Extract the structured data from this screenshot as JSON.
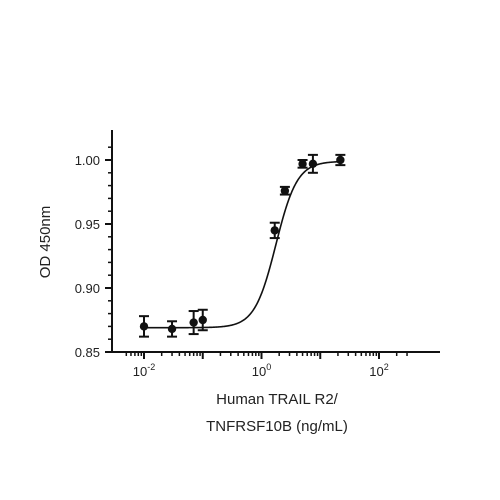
{
  "chart_data": {
    "type": "scatter",
    "xscale": "log",
    "xlabel": [
      "Human TRAIL R2/",
      "TNFRSF10B (ng/mL)"
    ],
    "ylabel": "OD 450nm",
    "xlim": [
      0.005,
      300
    ],
    "ylim": [
      0.85,
      1.02
    ],
    "grid": false,
    "legend": "none",
    "yticks": [
      {
        "value": 0.85,
        "label": "0.85"
      },
      {
        "value": 0.9,
        "label": "0.90"
      },
      {
        "value": 0.95,
        "label": "0.95"
      },
      {
        "value": 1.0,
        "label": "1.00"
      }
    ],
    "xticks": [
      {
        "value": 0.01,
        "base": "10",
        "exp": "-2"
      },
      {
        "value": 1,
        "base": "10",
        "exp": "0"
      },
      {
        "value": 100,
        "base": "10",
        "exp": "2"
      }
    ],
    "points": [
      {
        "x": 0.01,
        "y": 0.87,
        "err": 0.008
      },
      {
        "x": 0.03,
        "y": 0.868,
        "err": 0.006
      },
      {
        "x": 0.07,
        "y": 0.873,
        "err": 0.009
      },
      {
        "x": 0.1,
        "y": 0.875,
        "err": 0.008
      },
      {
        "x": 1.68,
        "y": 0.945,
        "err": 0.006
      },
      {
        "x": 2.5,
        "y": 0.976,
        "err": 0.003
      },
      {
        "x": 5.0,
        "y": 0.997,
        "err": 0.003
      },
      {
        "x": 7.5,
        "y": 0.997,
        "err": 0.007
      },
      {
        "x": 22.0,
        "y": 1.0,
        "err": 0.004
      }
    ],
    "fit": {
      "model": "4PL",
      "bottom": 0.869,
      "top": 0.999,
      "ec50": 1.76,
      "hill": 2.4
    },
    "colors": {
      "marker": "#111111",
      "line": "#111111",
      "axis": "#111111"
    }
  }
}
